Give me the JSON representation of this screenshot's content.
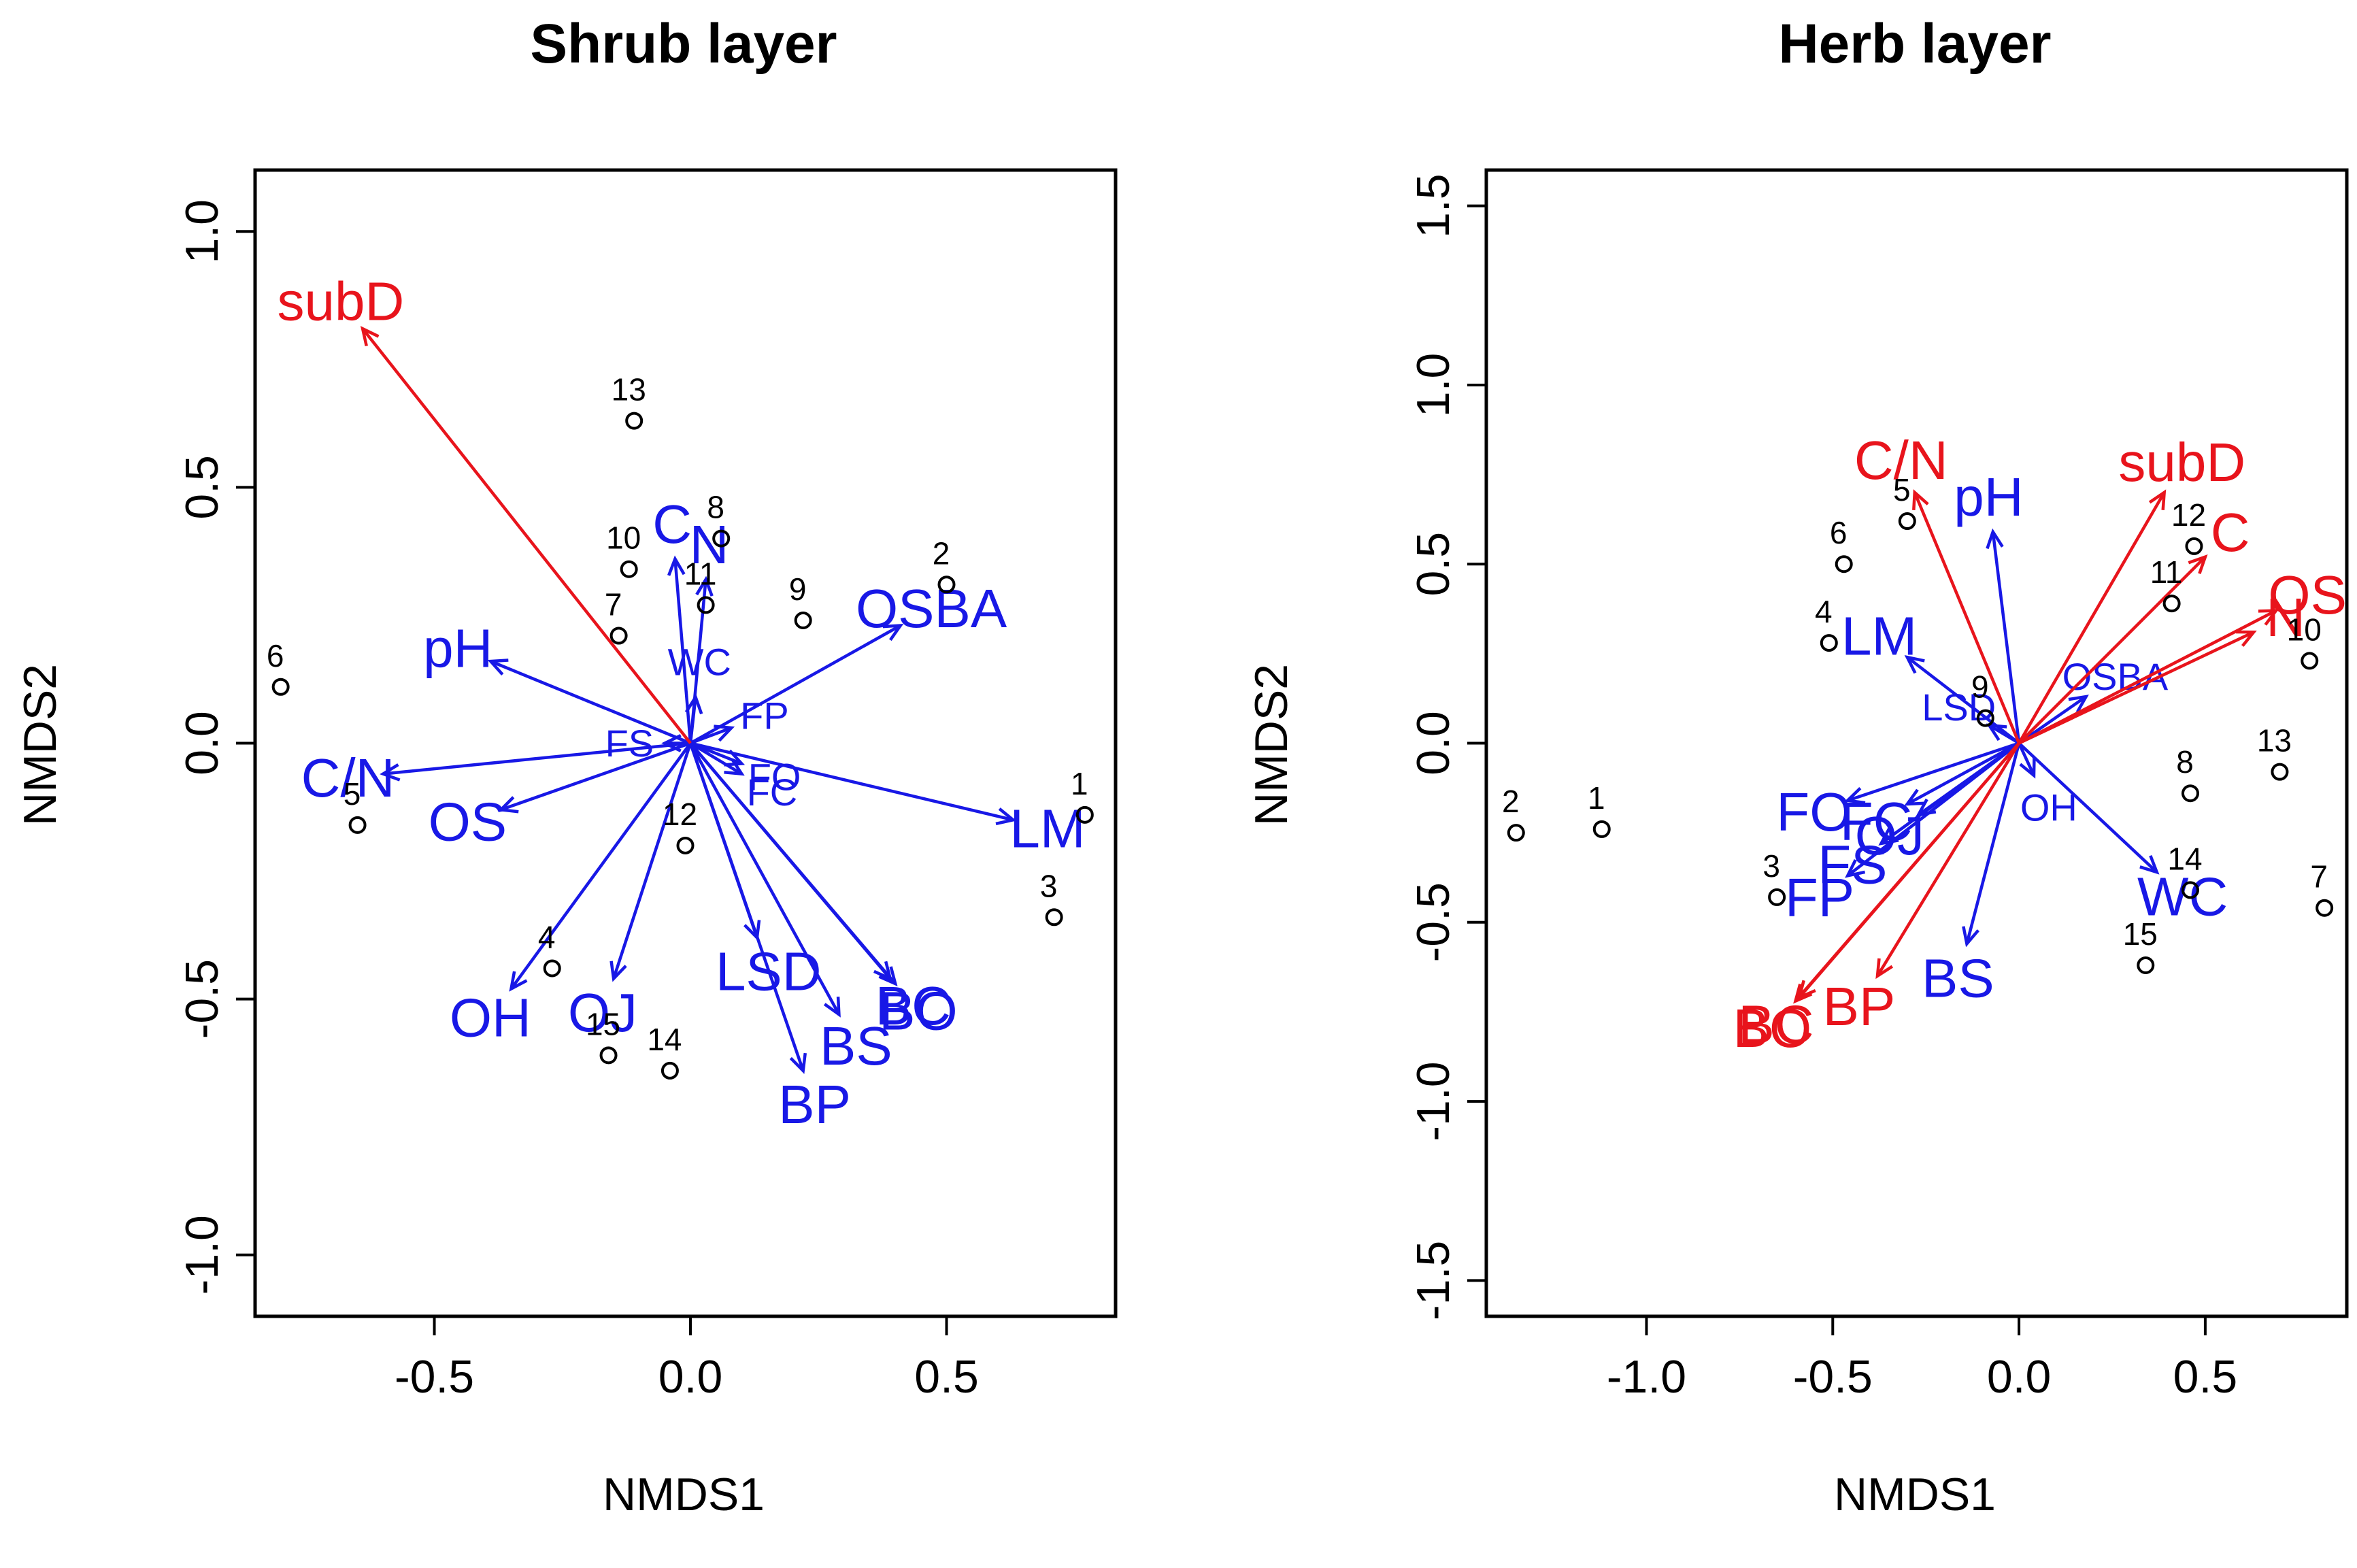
{
  "colors": {
    "significant": "#e8141c",
    "nonsignificant": "#1818e6",
    "site": "#000000"
  },
  "chart_data": [
    {
      "type": "scatter",
      "title": "Shrub layer",
      "xlabel": "NMDS1",
      "ylabel": "NMDS2",
      "xlim": [
        -0.85,
        0.83
      ],
      "ylim": [
        -1.12,
        1.12
      ],
      "xticks": [
        "-0.5",
        "0.0",
        "0.5"
      ],
      "yticks": [
        "-1.0",
        "-0.5",
        "0.0",
        "0.5",
        "1.0"
      ],
      "sites": [
        {
          "label": "1",
          "x": 0.77,
          "y": -0.14
        },
        {
          "label": "2",
          "x": 0.5,
          "y": 0.31
        },
        {
          "label": "3",
          "x": 0.71,
          "y": -0.34
        },
        {
          "label": "4",
          "x": -0.27,
          "y": -0.44
        },
        {
          "label": "5",
          "x": -0.65,
          "y": -0.16
        },
        {
          "label": "6",
          "x": -0.8,
          "y": 0.11
        },
        {
          "label": "7",
          "x": -0.14,
          "y": 0.21
        },
        {
          "label": "8",
          "x": 0.06,
          "y": 0.4
        },
        {
          "label": "9",
          "x": 0.22,
          "y": 0.24
        },
        {
          "label": "10",
          "x": -0.12,
          "y": 0.34
        },
        {
          "label": "11",
          "x": 0.03,
          "y": 0.27
        },
        {
          "label": "12",
          "x": -0.01,
          "y": -0.2
        },
        {
          "label": "13",
          "x": -0.11,
          "y": 0.63
        },
        {
          "label": "14",
          "x": -0.04,
          "y": -0.64
        },
        {
          "label": "15",
          "x": -0.16,
          "y": -0.61
        }
      ],
      "vectors": [
        {
          "label": "subD",
          "x": -0.64,
          "y": 0.81,
          "significant": true
        },
        {
          "label": "C",
          "x": -0.03,
          "y": 0.36,
          "significant": false
        },
        {
          "label": "N",
          "x": 0.03,
          "y": 0.32,
          "significant": false
        },
        {
          "label": "OSBA",
          "x": 0.41,
          "y": 0.23,
          "significant": false
        },
        {
          "label": "pH",
          "x": -0.39,
          "y": 0.16,
          "significant": false
        },
        {
          "label": "WC",
          "x": 0.01,
          "y": 0.09,
          "significant": false
        },
        {
          "label": "FP",
          "x": 0.08,
          "y": 0.03,
          "significant": false
        },
        {
          "label": "FS",
          "x": -0.05,
          "y": 0.0,
          "significant": false
        },
        {
          "label": "FO",
          "x": 0.1,
          "y": -0.04,
          "significant": false
        },
        {
          "label": "FC",
          "x": 0.1,
          "y": -0.06,
          "significant": false
        },
        {
          "label": "C/N",
          "x": -0.6,
          "y": -0.06,
          "significant": false
        },
        {
          "label": "OS",
          "x": -0.37,
          "y": -0.13,
          "significant": false
        },
        {
          "label": "LM",
          "x": 0.63,
          "y": -0.15,
          "significant": false
        },
        {
          "label": "LSD",
          "x": 0.13,
          "y": -0.38,
          "significant": false
        },
        {
          "label": "BC",
          "x": 0.39,
          "y": -0.46,
          "significant": false
        },
        {
          "label": "BO",
          "x": 0.4,
          "y": -0.47,
          "significant": false
        },
        {
          "label": "BS",
          "x": 0.29,
          "y": -0.53,
          "significant": false
        },
        {
          "label": "BP",
          "x": 0.22,
          "y": -0.64,
          "significant": false
        },
        {
          "label": "OH",
          "x": -0.35,
          "y": -0.48,
          "significant": false
        },
        {
          "label": "OJ",
          "x": -0.15,
          "y": -0.46,
          "significant": false
        }
      ]
    },
    {
      "type": "scatter",
      "title": "Herb layer",
      "xlabel": "NMDS1",
      "ylabel": "NMDS2",
      "xlim": [
        -1.43,
        0.88
      ],
      "ylim": [
        -1.6,
        1.6
      ],
      "xticks": [
        "-1.0",
        "-0.5",
        "0.0",
        "0.5"
      ],
      "yticks": [
        "-1.5",
        "-1.0",
        "-0.5",
        "0.0",
        "0.5",
        "1.0",
        "1.5"
      ],
      "sites": [
        {
          "label": "1",
          "x": -1.12,
          "y": -0.24
        },
        {
          "label": "2",
          "x": -1.35,
          "y": -0.25
        },
        {
          "label": "3",
          "x": -0.65,
          "y": -0.43
        },
        {
          "label": "4",
          "x": -0.51,
          "y": 0.28
        },
        {
          "label": "5",
          "x": -0.3,
          "y": 0.62
        },
        {
          "label": "6",
          "x": -0.47,
          "y": 0.5
        },
        {
          "label": "7",
          "x": 0.82,
          "y": -0.46
        },
        {
          "label": "8",
          "x": 0.46,
          "y": -0.14
        },
        {
          "label": "9",
          "x": -0.09,
          "y": 0.07
        },
        {
          "label": "10",
          "x": 0.78,
          "y": 0.23
        },
        {
          "label": "11",
          "x": 0.41,
          "y": 0.39
        },
        {
          "label": "12",
          "x": 0.47,
          "y": 0.55
        },
        {
          "label": "13",
          "x": 0.7,
          "y": -0.08
        },
        {
          "label": "14",
          "x": 0.46,
          "y": -0.41
        },
        {
          "label": "15",
          "x": 0.34,
          "y": -0.62
        }
      ],
      "vectors": [
        {
          "label": "C/N",
          "x": -0.28,
          "y": 0.7,
          "significant": true
        },
        {
          "label": "pH",
          "x": -0.07,
          "y": 0.59,
          "significant": false
        },
        {
          "label": "subD",
          "x": 0.39,
          "y": 0.7,
          "significant": true
        },
        {
          "label": "C",
          "x": 0.5,
          "y": 0.52,
          "significant": true
        },
        {
          "label": "OS",
          "x": 0.69,
          "y": 0.37,
          "significant": true
        },
        {
          "label": "N",
          "x": 0.63,
          "y": 0.31,
          "significant": true
        },
        {
          "label": "LM",
          "x": -0.3,
          "y": 0.24,
          "significant": false
        },
        {
          "label": "OSBA",
          "x": 0.18,
          "y": 0.13,
          "significant": false
        },
        {
          "label": "LSD",
          "x": -0.08,
          "y": 0.05,
          "significant": false
        },
        {
          "label": "OH",
          "x": 0.04,
          "y": -0.09,
          "significant": false
        },
        {
          "label": "FO",
          "x": -0.46,
          "y": -0.16,
          "significant": false
        },
        {
          "label": "FC",
          "x": -0.3,
          "y": -0.17,
          "significant": false
        },
        {
          "label": "OJ",
          "x": -0.27,
          "y": -0.2,
          "significant": false
        },
        {
          "label": "FS",
          "x": -0.37,
          "y": -0.28,
          "significant": false
        },
        {
          "label": "FP",
          "x": -0.46,
          "y": -0.37,
          "significant": false
        },
        {
          "label": "WC",
          "x": 0.37,
          "y": -0.36,
          "significant": false
        },
        {
          "label": "BS",
          "x": -0.14,
          "y": -0.56,
          "significant": false
        },
        {
          "label": "BP",
          "x": -0.38,
          "y": -0.65,
          "significant": true
        },
        {
          "label": "BC",
          "x": -0.59,
          "y": -0.71,
          "significant": true
        },
        {
          "label": "BO",
          "x": -0.6,
          "y": -0.72,
          "significant": true
        }
      ]
    }
  ]
}
